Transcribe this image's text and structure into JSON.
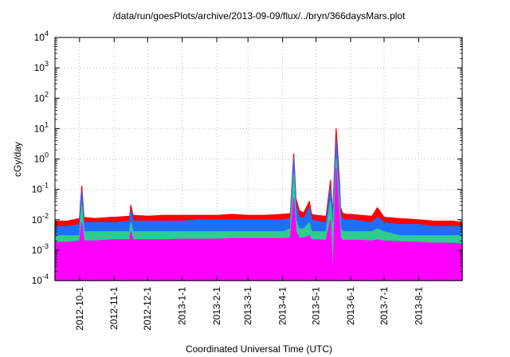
{
  "chart_data": {
    "type": "area",
    "title": "/data/run/goesPlots/archive/2013-09-09/flux/../bryn/366daysMars.plot",
    "xlabel": "Coordinated Universal Time (UTC)",
    "ylabel": "cGy/day",
    "yscale": "log",
    "ylim": [
      0.0001,
      10000
    ],
    "xlim": [
      "2012-09-09",
      "2013-09-09"
    ],
    "grid": true,
    "y_ticks": [
      {
        "mantissa": "10",
        "exp": "-4",
        "value": 0.0001
      },
      {
        "mantissa": "10",
        "exp": "-3",
        "value": 0.001
      },
      {
        "mantissa": "10",
        "exp": "-2",
        "value": 0.01
      },
      {
        "mantissa": "10",
        "exp": "-1",
        "value": 0.1
      },
      {
        "mantissa": "10",
        "exp": "0",
        "value": 1
      },
      {
        "mantissa": "10",
        "exp": "1",
        "value": 10
      },
      {
        "mantissa": "10",
        "exp": "2",
        "value": 100
      },
      {
        "mantissa": "10",
        "exp": "3",
        "value": 1000
      },
      {
        "mantissa": "10",
        "exp": "4",
        "value": 10000
      }
    ],
    "x_ticks": [
      {
        "label": "2012-10-1",
        "date": "2012-10-01"
      },
      {
        "label": "2012-11-1",
        "date": "2012-11-01"
      },
      {
        "label": "2012-12-1",
        "date": "2012-12-01"
      },
      {
        "label": "2013-1-1",
        "date": "2013-01-01"
      },
      {
        "label": "2013-2-1",
        "date": "2013-02-01"
      },
      {
        "label": "2013-3-1",
        "date": "2013-03-01"
      },
      {
        "label": "2013-4-1",
        "date": "2013-04-01"
      },
      {
        "label": "2013-5-1",
        "date": "2013-05-01"
      },
      {
        "label": "2013-6-1",
        "date": "2013-06-01"
      },
      {
        "label": "2013-7-1",
        "date": "2013-07-01"
      },
      {
        "label": "2013-8-1",
        "date": "2013-08-01"
      }
    ],
    "x": [
      "2012-09-09",
      "2012-09-20",
      "2012-10-01",
      "2012-10-03",
      "2012-10-05",
      "2012-10-15",
      "2012-10-29",
      "2012-11-01",
      "2012-11-15",
      "2012-11-16",
      "2012-11-18",
      "2012-12-01",
      "2012-12-15",
      "2013-01-01",
      "2013-01-15",
      "2013-02-01",
      "2013-02-15",
      "2013-03-01",
      "2013-03-15",
      "2013-04-01",
      "2013-04-08",
      "2013-04-11",
      "2013-04-13",
      "2013-04-16",
      "2013-04-20",
      "2013-04-25",
      "2013-04-27",
      "2013-05-01",
      "2013-05-10",
      "2013-05-14",
      "2013-05-16",
      "2013-05-19",
      "2013-05-22",
      "2013-05-23",
      "2013-05-25",
      "2013-05-28",
      "2013-06-01",
      "2013-06-10",
      "2013-06-20",
      "2013-06-25",
      "2013-07-01",
      "2013-07-15",
      "2013-08-01",
      "2013-08-15",
      "2013-09-01",
      "2013-09-09"
    ],
    "series": [
      {
        "color": "#ff0000",
        "values": [
          0.009,
          0.009,
          0.011,
          0.13,
          0.012,
          0.011,
          0.012,
          0.012,
          0.013,
          0.03,
          0.014,
          0.013,
          0.014,
          0.014,
          0.014,
          0.014,
          0.015,
          0.014,
          0.014,
          0.015,
          0.016,
          1.5,
          0.05,
          0.02,
          0.017,
          0.04,
          0.015,
          0.014,
          0.013,
          0.2,
          0.015,
          10,
          0.2,
          0.025,
          0.016,
          0.015,
          0.015,
          0.014,
          0.013,
          0.025,
          0.012,
          0.011,
          0.01,
          0.009,
          0.009,
          0.008
        ]
      },
      {
        "color": "#1e6fff",
        "values": [
          0.006,
          0.006,
          0.007,
          0.09,
          0.008,
          0.008,
          0.008,
          0.008,
          0.009,
          0.02,
          0.009,
          0.009,
          0.009,
          0.009,
          0.01,
          0.01,
          0.01,
          0.01,
          0.01,
          0.01,
          0.011,
          1.0,
          0.03,
          0.012,
          0.011,
          0.025,
          0.01,
          0.009,
          0.008,
          0.12,
          0.01,
          4.0,
          0.12,
          0.015,
          0.01,
          0.01,
          0.01,
          0.009,
          0.008,
          0.012,
          0.008,
          0.007,
          0.007,
          0.006,
          0.006,
          0.006
        ]
      },
      {
        "color": "#2ecc8f",
        "values": [
          0.003,
          0.003,
          0.003,
          0.03,
          0.004,
          0.004,
          0.004,
          0.004,
          0.004,
          0.008,
          0.004,
          0.004,
          0.004,
          0.004,
          0.004,
          0.004,
          0.004,
          0.004,
          0.004,
          0.004,
          0.005,
          0.3,
          0.01,
          0.005,
          0.005,
          0.008,
          0.004,
          0.004,
          0.004,
          0.04,
          0.004,
          1.0,
          0.04,
          0.005,
          0.004,
          0.004,
          0.004,
          0.004,
          0.004,
          0.005,
          0.004,
          0.003,
          0.003,
          0.003,
          0.003,
          0.003
        ]
      },
      {
        "color": "#ff00ff",
        "values": [
          0.0018,
          0.0018,
          0.002,
          0.008,
          0.002,
          0.002,
          0.0022,
          0.0022,
          0.0022,
          0.004,
          0.0022,
          0.0022,
          0.0022,
          0.0023,
          0.0023,
          0.0023,
          0.0024,
          0.0024,
          0.0024,
          0.0024,
          0.0025,
          0.05,
          0.004,
          0.0025,
          0.0025,
          0.003,
          0.0022,
          0.0022,
          0.0021,
          0.01,
          0.0001,
          0.5,
          0.01,
          0.0025,
          0.0021,
          0.0021,
          0.0021,
          0.0021,
          0.002,
          0.0022,
          0.002,
          0.0019,
          0.0018,
          0.0017,
          0.0017,
          0.0016
        ]
      }
    ]
  }
}
